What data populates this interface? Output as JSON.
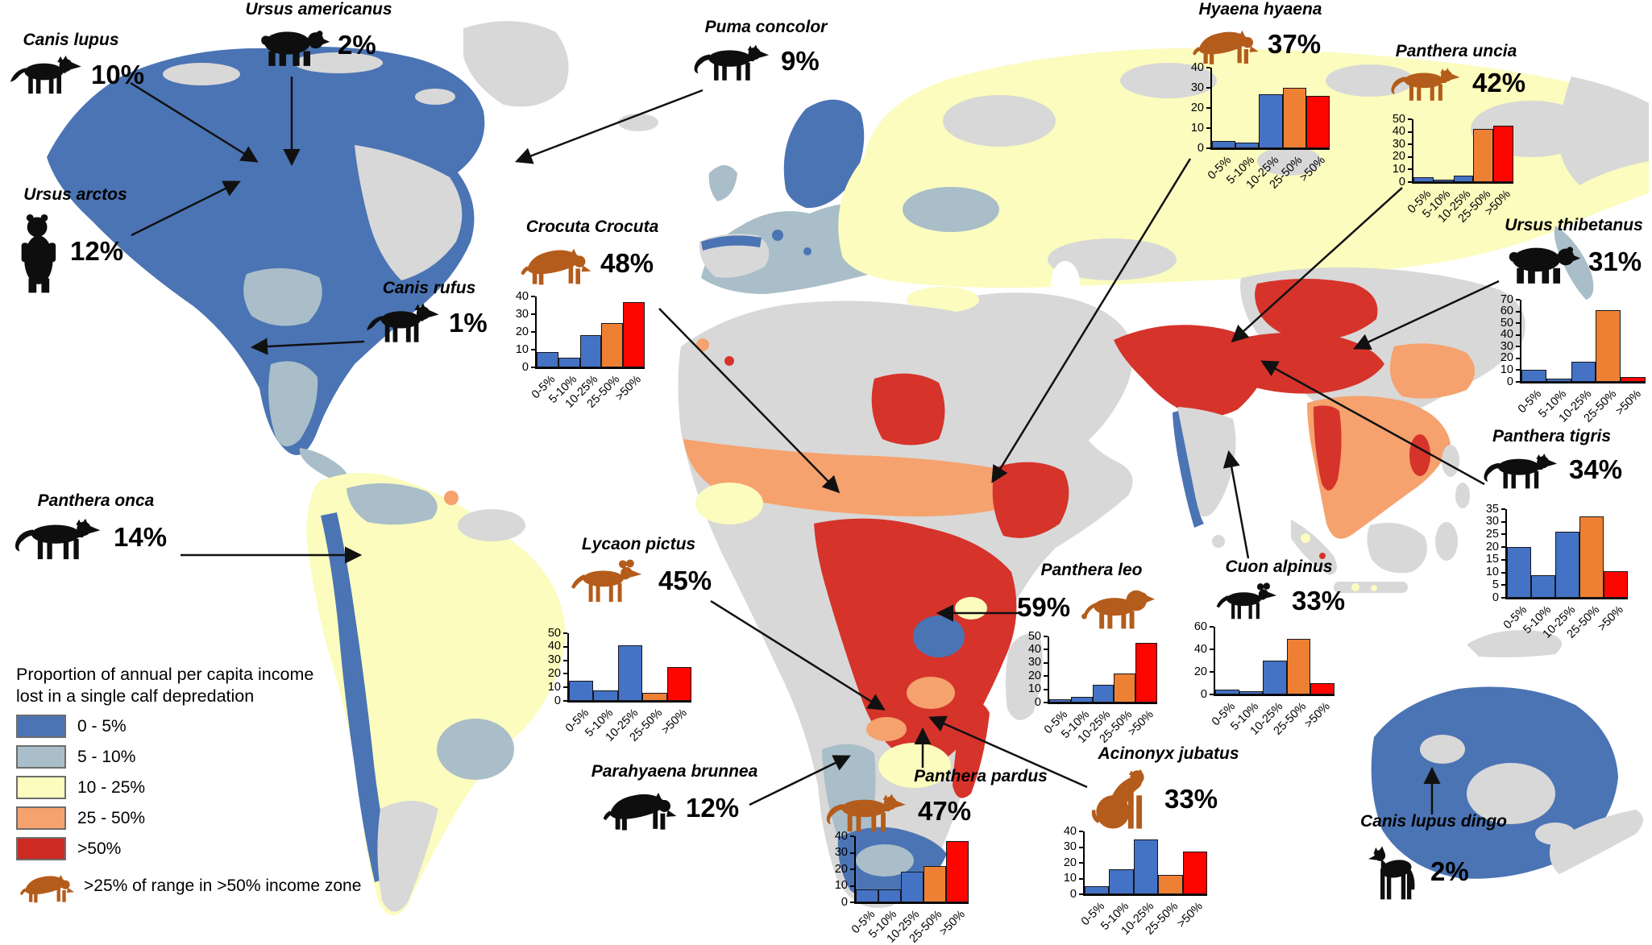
{
  "legend": {
    "title_line1": "Proportion of annual per capita income",
    "title_line2": "lost in a single calf depredation",
    "items": [
      {
        "label": "0 - 5%",
        "color": "#4b74b4"
      },
      {
        "label": "5 - 10%",
        "color": "#a9bec8"
      },
      {
        "label": "10 - 25%",
        "color": "#fbfcbe"
      },
      {
        "label": "25 - 50%",
        "color": "#f5a26e"
      },
      {
        "label": ">50%",
        "color": "#cd2a23"
      }
    ],
    "range_note": ">25% of range in >50% income zone"
  },
  "palette": {
    "map_blue": "#4b74b4",
    "map_grayblue": "#a9bec8",
    "map_yellow": "#fbfcbe",
    "map_salmon": "#f5a26e",
    "map_red": "#d6332b",
    "map_nodata_gray": "#d8d8d8",
    "bar_blue": "#4472c4",
    "bar_orange": "#ee8033",
    "bar_red": "#fe0600",
    "silhouette_orange": "#b45c1b",
    "silhouette_black": "#0e0e0e"
  },
  "species": [
    {
      "name": "Canis lupus",
      "percent": "10%",
      "icon": "wolf-icon",
      "silhouette_color": "black"
    },
    {
      "name": "Ursus americanus",
      "percent": "2%",
      "icon": "bear-walking-icon",
      "silhouette_color": "black"
    },
    {
      "name": "Ursus arctos",
      "percent": "12%",
      "icon": "bear-standing-icon",
      "silhouette_color": "black"
    },
    {
      "name": "Canis rufus",
      "percent": "1%",
      "icon": "wolf-icon",
      "silhouette_color": "black"
    },
    {
      "name": "Puma concolor",
      "percent": "9%",
      "icon": "big-cat-icon",
      "silhouette_color": "black"
    },
    {
      "name": "Panthera onca",
      "percent": "14%",
      "icon": "big-cat-icon",
      "silhouette_color": "black"
    },
    {
      "name": "Crocuta Crocuta",
      "percent": "48%",
      "icon": "hyena-icon",
      "silhouette_color": "orange"
    },
    {
      "name": "Lycaon pictus",
      "percent": "45%",
      "icon": "wild-dog-icon",
      "silhouette_color": "orange"
    },
    {
      "name": "Parahyaena brunnea",
      "percent": "12%",
      "icon": "hyena-icon",
      "silhouette_color": "black"
    },
    {
      "name": "Panthera pardus",
      "percent": "47%",
      "icon": "big-cat-icon",
      "silhouette_color": "orange"
    },
    {
      "name": "Panthera leo",
      "percent": "59%",
      "icon": "lion-icon",
      "silhouette_color": "orange"
    },
    {
      "name": "Acinonyx jubatus",
      "percent": "33%",
      "icon": "cheetah-sitting-icon",
      "silhouette_color": "orange"
    },
    {
      "name": "Hyaena hyaena",
      "percent": "37%",
      "icon": "hyena-icon",
      "silhouette_color": "orange"
    },
    {
      "name": "Panthera uncia",
      "percent": "42%",
      "icon": "big-cat-icon",
      "silhouette_color": "orange"
    },
    {
      "name": "Ursus thibetanus",
      "percent": "31%",
      "icon": "bear-walking-icon",
      "silhouette_color": "black"
    },
    {
      "name": "Panthera tigris",
      "percent": "34%",
      "icon": "big-cat-icon",
      "silhouette_color": "black"
    },
    {
      "name": "Cuon alpinus",
      "percent": "33%",
      "icon": "wild-dog-icon",
      "silhouette_color": "black"
    },
    {
      "name": "Canis lupus dingo",
      "percent": "2%",
      "icon": "dingo-icon",
      "silhouette_color": "black"
    }
  ],
  "chart_data": [
    {
      "species": "Crocuta Crocuta",
      "type": "bar",
      "categories": [
        "0-5%",
        "5-10%",
        "10-25%",
        "25-50%",
        ">50%"
      ],
      "values": [
        8.5,
        5.5,
        18,
        25,
        37
      ],
      "ylim": [
        0,
        40
      ],
      "yticks": [
        0,
        10,
        20,
        30,
        40
      ],
      "bar_colors": [
        "blue",
        "blue",
        "blue",
        "orange",
        "red"
      ],
      "x_rotation": 45
    },
    {
      "species": "Lycaon pictus",
      "type": "bar",
      "categories": [
        "0-5%",
        "5-10%",
        "10-25%",
        "25-50%",
        ">50%"
      ],
      "values": [
        15,
        8,
        41,
        6,
        25
      ],
      "ylim": [
        0,
        50
      ],
      "yticks": [
        0,
        10,
        20,
        30,
        40,
        50
      ],
      "bar_colors": [
        "blue",
        "blue",
        "blue",
        "orange",
        "red"
      ],
      "x_rotation": 45
    },
    {
      "species": "Panthera pardus",
      "type": "bar",
      "categories": [
        "0-5%",
        "5-10%",
        "10-25%",
        "25-50%",
        ">50%"
      ],
      "values": [
        8,
        8,
        18.5,
        22,
        37
      ],
      "ylim": [
        0,
        40
      ],
      "yticks": [
        0,
        10,
        20,
        30,
        40
      ],
      "bar_colors": [
        "blue",
        "blue",
        "blue",
        "orange",
        "red"
      ],
      "x_rotation": 45
    },
    {
      "species": "Panthera leo",
      "type": "bar",
      "categories": [
        "0-5%",
        "5-10%",
        "10-25%",
        "25-50%",
        ">50%"
      ],
      "values": [
        2.5,
        4.5,
        13.5,
        22,
        45
      ],
      "ylim": [
        0,
        50
      ],
      "yticks": [
        0,
        10,
        20,
        30,
        40,
        50
      ],
      "bar_colors": [
        "blue",
        "blue",
        "blue",
        "orange",
        "red"
      ],
      "x_rotation": 45
    },
    {
      "species": "Acinonyx jubatus",
      "type": "bar",
      "categories": [
        "0-5%",
        "5-10%",
        "10-25%",
        "25-50%",
        ">50%"
      ],
      "values": [
        5,
        16,
        35,
        12.5,
        27
      ],
      "ylim": [
        0,
        40
      ],
      "yticks": [
        0,
        10,
        20,
        30,
        40
      ],
      "bar_colors": [
        "blue",
        "blue",
        "blue",
        "orange",
        "red"
      ],
      "x_rotation": 45
    },
    {
      "species": "Hyaena hyaena",
      "type": "bar",
      "categories": [
        "0-5%",
        "5-10%",
        "10-25%",
        "25-50%",
        ">50%"
      ],
      "values": [
        3.5,
        3,
        27,
        30,
        26
      ],
      "ylim": [
        0,
        40
      ],
      "yticks": [
        0,
        10,
        20,
        30,
        40
      ],
      "bar_colors": [
        "blue",
        "blue",
        "blue",
        "orange",
        "red"
      ],
      "x_rotation": 45
    },
    {
      "species": "Panthera uncia",
      "type": "bar",
      "categories": [
        "0-5%",
        "5-10%",
        "10-25%",
        "25-50%",
        ">50%"
      ],
      "values": [
        4,
        2,
        5,
        42,
        45
      ],
      "ylim": [
        0,
        50
      ],
      "yticks": [
        0,
        10,
        20,
        30,
        40,
        50
      ],
      "bar_colors": [
        "blue",
        "blue",
        "blue",
        "orange",
        "red"
      ],
      "x_rotation": 45
    },
    {
      "species": "Ursus thibetanus",
      "type": "bar",
      "categories": [
        "0-5%",
        "5-10%",
        "10-25%",
        "25-50%",
        ">50%"
      ],
      "values": [
        10,
        3,
        17,
        61,
        4
      ],
      "ylim": [
        0,
        70
      ],
      "yticks": [
        0,
        10,
        20,
        30,
        40,
        50,
        60,
        70
      ],
      "bar_colors": [
        "blue",
        "blue",
        "blue",
        "orange",
        "red"
      ],
      "x_rotation": 45
    },
    {
      "species": "Panthera tigris",
      "type": "bar",
      "categories": [
        "0-5%",
        "5-10%",
        "10-25%",
        "25-50%",
        ">50%"
      ],
      "values": [
        20,
        9,
        26,
        32,
        10.5
      ],
      "ylim": [
        0,
        35
      ],
      "yticks": [
        0,
        5,
        10,
        15,
        20,
        25,
        30,
        35
      ],
      "bar_colors": [
        "blue",
        "blue",
        "blue",
        "orange",
        "red"
      ],
      "x_rotation": 45
    },
    {
      "species": "Cuon alpinus",
      "type": "bar",
      "categories": [
        "0-5%",
        "5-10%",
        "10-25%",
        "25-50%",
        ">50%"
      ],
      "values": [
        4,
        3,
        30,
        49,
        10
      ],
      "ylim": [
        0,
        60
      ],
      "yticks": [
        0,
        20,
        40,
        60
      ],
      "bar_colors": [
        "blue",
        "blue",
        "blue",
        "orange",
        "red"
      ],
      "x_rotation": 45
    }
  ]
}
